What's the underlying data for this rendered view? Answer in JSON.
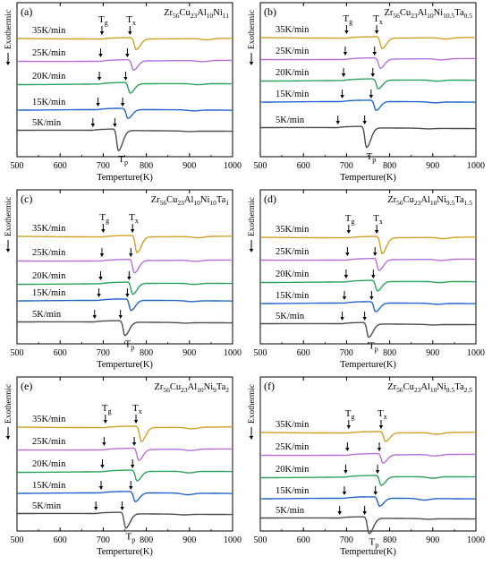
{
  "figure": {
    "xlabel": "Temperture(K)",
    "ylabel": "Exothermic",
    "x_ticks": [
      500,
      600,
      700,
      800,
      900,
      1000
    ],
    "rates": [
      "35K/min",
      "25K/min",
      "20K/min",
      "15K/min",
      "5K/min"
    ],
    "colors": [
      "#d4a026",
      "#b66fde",
      "#2ca35a",
      "#2166cc",
      "#4d4d4d"
    ],
    "marker_labels": {
      "tg": "T",
      "tg_sub": "g",
      "tx": "T",
      "tx_sub": "x",
      "tp": "T",
      "tp_sub": "p"
    }
  },
  "chart_data": [
    {
      "type": "line",
      "panel": "(a)",
      "alloy": {
        "base": "Zr",
        "parts": [
          [
            "56",
            "Cu"
          ],
          [
            "23",
            "Al"
          ],
          [
            "10",
            "Ni"
          ],
          [
            "11",
            ""
          ]
        ]
      },
      "xlim": [
        500,
        1000
      ],
      "x_range": [
        500,
        1000
      ],
      "series": [
        {
          "name": "35K/min",
          "tg": 697,
          "tx": 762,
          "tp": 776,
          "depth": 1.0,
          "exo": [
            {
              "c": 940,
              "h": 0.5
            }
          ]
        },
        {
          "name": "25K/min",
          "tg": 694,
          "tx": 756,
          "tp": 770,
          "depth": 0.95,
          "exo": [
            {
              "c": 930,
              "h": 0.45
            }
          ]
        },
        {
          "name": "20K/min",
          "tg": 691,
          "tx": 752,
          "tp": 762,
          "depth": 0.9,
          "exo": [
            {
              "c": 920,
              "h": 0.4
            }
          ]
        },
        {
          "name": "15K/min",
          "tg": 688,
          "tx": 745,
          "tp": 757,
          "depth": 0.85,
          "exo": [
            {
              "c": 910,
              "h": 0.35
            }
          ]
        },
        {
          "name": "5K/min",
          "tg": 676,
          "tx": 727,
          "tp": 735,
          "depth": 1.1,
          "exo": [
            {
              "c": 900,
              "h": 0.2
            }
          ]
        }
      ]
    },
    {
      "type": "line",
      "panel": "(b)",
      "alloy": {
        "base": "Zr",
        "parts": [
          [
            "56",
            "Cu"
          ],
          [
            "23",
            "Al"
          ],
          [
            "10",
            "Ni"
          ],
          [
            "10.5",
            "Ta"
          ],
          [
            "0.5",
            ""
          ]
        ]
      },
      "xlim": [
        500,
        1000
      ],
      "x_range": [
        500,
        1000
      ],
      "series": [
        {
          "name": "35K/min",
          "tg": 700,
          "tx": 770,
          "tp": 782,
          "depth": 1.0,
          "exo": [
            {
              "c": 930,
              "h": 0.5
            }
          ]
        },
        {
          "name": "25K/min",
          "tg": 697,
          "tx": 765,
          "tp": 778,
          "depth": 0.95,
          "exo": [
            {
              "c": 920,
              "h": 0.45
            }
          ]
        },
        {
          "name": "20K/min",
          "tg": 693,
          "tx": 761,
          "tp": 773,
          "depth": 0.9,
          "exo": [
            {
              "c": 910,
              "h": 0.4
            }
          ]
        },
        {
          "name": "15K/min",
          "tg": 690,
          "tx": 757,
          "tp": 768,
          "depth": 0.85,
          "exo": [
            {
              "c": 905,
              "h": 0.35
            }
          ]
        },
        {
          "name": "5K/min",
          "tg": 680,
          "tx": 742,
          "tp": 746,
          "depth": 1.2,
          "exo": [
            {
              "c": 890,
              "h": 0.2
            }
          ]
        }
      ]
    },
    {
      "type": "line",
      "panel": "(c)",
      "alloy": {
        "base": "Zr",
        "parts": [
          [
            "56",
            "Cu"
          ],
          [
            "23",
            "Al"
          ],
          [
            "10",
            "Ni"
          ],
          [
            "10",
            "Ta"
          ],
          [
            "1",
            ""
          ]
        ]
      },
      "xlim": [
        500,
        1000
      ],
      "x_range": [
        500,
        1000
      ],
      "series": [
        {
          "name": "35K/min",
          "tg": 700,
          "tx": 768,
          "tp": 778,
          "depth": 1.0,
          "exo": [
            {
              "c": 920,
              "h": 0.5
            }
          ]
        },
        {
          "name": "25K/min",
          "tg": 697,
          "tx": 764,
          "tp": 772,
          "depth": 0.95,
          "exo": [
            {
              "c": 915,
              "h": 0.45
            }
          ]
        },
        {
          "name": "20K/min",
          "tg": 694,
          "tx": 760,
          "tp": 768,
          "depth": 0.9,
          "exo": [
            {
              "c": 910,
              "h": 0.4
            }
          ]
        },
        {
          "name": "15K/min",
          "tg": 690,
          "tx": 756,
          "tp": 764,
          "depth": 0.85,
          "exo": [
            {
              "c": 905,
              "h": 0.35
            }
          ]
        },
        {
          "name": "5K/min",
          "tg": 680,
          "tx": 740,
          "tp": 750,
          "depth": 1.1,
          "exo": [
            {
              "c": 890,
              "h": 0.2
            }
          ]
        }
      ]
    },
    {
      "type": "line",
      "panel": "(d)",
      "alloy": {
        "base": "Zr",
        "parts": [
          [
            "56",
            "Cu"
          ],
          [
            "23",
            "Al"
          ],
          [
            "10",
            "Ni"
          ],
          [
            "9.5",
            "Ta"
          ],
          [
            "1.5",
            ""
          ]
        ]
      },
      "xlim": [
        500,
        1000
      ],
      "x_range": [
        500,
        1000
      ],
      "series": [
        {
          "name": "35K/min",
          "tg": 705,
          "tx": 770,
          "tp": 782,
          "depth": 1.0,
          "exo": [
            {
              "c": 925,
              "h": 0.5
            }
          ]
        },
        {
          "name": "25K/min",
          "tg": 702,
          "tx": 766,
          "tp": 775,
          "depth": 0.95,
          "exo": [
            {
              "c": 920,
              "h": 0.45
            }
          ]
        },
        {
          "name": "20K/min",
          "tg": 699,
          "tx": 762,
          "tp": 771,
          "depth": 0.9,
          "exo": [
            {
              "c": 915,
              "h": 0.4
            }
          ]
        },
        {
          "name": "15K/min",
          "tg": 695,
          "tx": 758,
          "tp": 767,
          "depth": 0.85,
          "exo": [
            {
              "c": 910,
              "h": 0.35
            }
          ]
        },
        {
          "name": "5K/min",
          "tg": 690,
          "tx": 742,
          "tp": 751,
          "depth": 1.1,
          "exo": [
            {
              "c": 900,
              "h": 0.2
            }
          ]
        }
      ]
    },
    {
      "type": "line",
      "panel": "(e)",
      "alloy": {
        "base": "Zr",
        "parts": [
          [
            "56",
            "Cu"
          ],
          [
            "23",
            "Al"
          ],
          [
            "10",
            "Ni"
          ],
          [
            "9",
            "Ta"
          ],
          [
            "2",
            ""
          ]
        ]
      },
      "xlim": [
        500,
        1000
      ],
      "x_range": [
        500,
        1000
      ],
      "series": [
        {
          "name": "35K/min",
          "tg": 705,
          "tx": 776,
          "tp": 788,
          "depth": 1.0,
          "exo": [
            {
              "c": 905,
              "h": 0.6
            }
          ]
        },
        {
          "name": "25K/min",
          "tg": 702,
          "tx": 772,
          "tp": 782,
          "depth": 0.95,
          "exo": [
            {
              "c": 902,
              "h": 0.55
            }
          ]
        },
        {
          "name": "20K/min",
          "tg": 698,
          "tx": 768,
          "tp": 778,
          "depth": 0.9,
          "exo": [
            {
              "c": 899,
              "h": 0.55
            }
          ]
        },
        {
          "name": "15K/min",
          "tg": 695,
          "tx": 764,
          "tp": 774,
          "depth": 0.85,
          "exo": [
            {
              "c": 896,
              "h": 0.6
            }
          ]
        },
        {
          "name": "5K/min",
          "tg": 683,
          "tx": 744,
          "tp": 752,
          "depth": 1.1,
          "exo": [
            {
              "c": 888,
              "h": 0.25
            }
          ]
        }
      ]
    },
    {
      "type": "line",
      "panel": "(f)",
      "alloy": {
        "base": "Zr",
        "parts": [
          [
            "56",
            "Cu"
          ],
          [
            "23",
            "Al"
          ],
          [
            "10",
            "Ni"
          ],
          [
            "8.5",
            "Ta"
          ],
          [
            "2.5",
            ""
          ]
        ]
      },
      "xlim": [
        500,
        1000
      ],
      "x_range": [
        500,
        1000
      ],
      "series": [
        {
          "name": "35K/min",
          "tg": 705,
          "tx": 780,
          "tp": 790,
          "depth": 1.0,
          "exo": [
            {
              "c": 910,
              "h": 0.6
            }
          ]
        },
        {
          "name": "25K/min",
          "tg": 702,
          "tx": 776,
          "tp": 784,
          "depth": 0.95,
          "exo": [
            {
              "c": 905,
              "h": 0.55
            }
          ]
        },
        {
          "name": "20K/min",
          "tg": 698,
          "tx": 772,
          "tp": 780,
          "depth": 0.9,
          "exo": [
            {
              "c": 900,
              "h": 0.55
            }
          ]
        },
        {
          "name": "15K/min",
          "tg": 695,
          "tx": 767,
          "tp": 776,
          "depth": 0.85,
          "exo": [
            {
              "c": 880,
              "h": 0.6
            }
          ]
        },
        {
          "name": "5K/min",
          "tg": 684,
          "tx": 742,
          "tp": 752,
          "depth": 1.1,
          "exo": [
            {
              "c": 890,
              "h": 0.2
            }
          ]
        }
      ]
    }
  ]
}
